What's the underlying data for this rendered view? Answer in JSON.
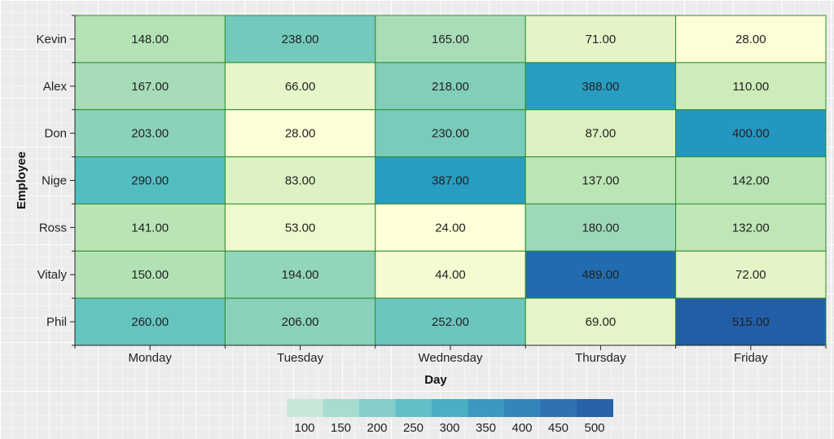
{
  "chart_data": {
    "type": "heatmap",
    "xlabel": "Day",
    "ylabel": "Employee",
    "x_categories": [
      "Monday",
      "Tuesday",
      "Wednesday",
      "Thursday",
      "Friday"
    ],
    "y_categories": [
      "Kevin",
      "Alex",
      "Don",
      "Nige",
      "Ross",
      "Vitaly",
      "Phil"
    ],
    "values": [
      [
        148,
        238,
        165,
        71,
        28
      ],
      [
        167,
        66,
        218,
        388,
        110
      ],
      [
        203,
        28,
        230,
        87,
        400
      ],
      [
        290,
        83,
        387,
        137,
        142
      ],
      [
        141,
        53,
        24,
        180,
        132
      ],
      [
        150,
        194,
        44,
        489,
        72
      ],
      [
        260,
        206,
        252,
        69,
        515
      ]
    ],
    "value_labels": [
      [
        "148.00",
        "238.00",
        "165.00",
        "71.00",
        "28.00"
      ],
      [
        "167.00",
        "66.00",
        "218.00",
        "388.00",
        "110.00"
      ],
      [
        "203.00",
        "28.00",
        "230.00",
        "87.00",
        "400.00"
      ],
      [
        "290.00",
        "83.00",
        "387.00",
        "137.00",
        "142.00"
      ],
      [
        "141.00",
        "53.00",
        "24.00",
        "180.00",
        "132.00"
      ],
      [
        "150.00",
        "194.00",
        "44.00",
        "489.00",
        "72.00"
      ],
      [
        "260.00",
        "206.00",
        "252.00",
        "69.00",
        "515.00"
      ]
    ],
    "color_scale": {
      "domain": [
        24,
        515
      ],
      "colors": [
        "#ffffd9",
        "#c7e9b4",
        "#7fcdbb",
        "#41b6c4",
        "#1d91c0",
        "#225ea8"
      ]
    },
    "cell_border_color": "#2e8b2e",
    "legend": {
      "position": "bottom-center",
      "ticks": [
        "100",
        "150",
        "200",
        "250",
        "300",
        "350",
        "400",
        "450",
        "500"
      ],
      "colors": [
        "#c9e7d9",
        "#a7dcd0",
        "#86cdcb",
        "#62bfc8",
        "#4aaec4",
        "#3d97c0",
        "#3584bb",
        "#2f72b0",
        "#2862a7"
      ]
    },
    "grid": false
  }
}
